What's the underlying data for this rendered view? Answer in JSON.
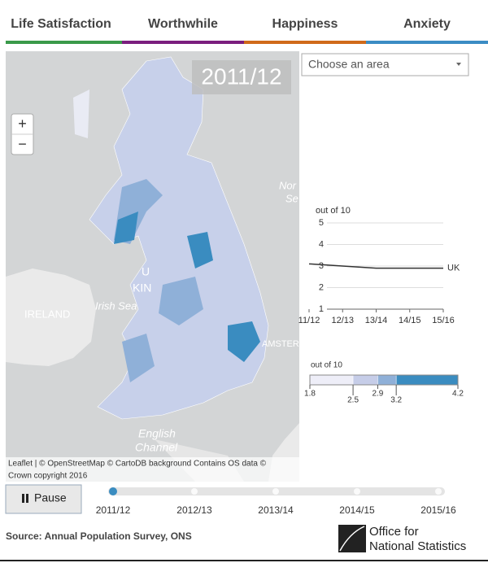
{
  "tabs": [
    {
      "label": "Life Satisfaction",
      "color": "#3a9a4a"
    },
    {
      "label": "Worthwhile",
      "color": "#7b1e7e"
    },
    {
      "label": "Happiness",
      "color": "#d06a1a"
    },
    {
      "label": "Anxiety",
      "color": "#3b8cc4"
    }
  ],
  "map": {
    "year": "2011/12",
    "zoom_in": "+",
    "zoom_out": "−",
    "labels": {
      "ireland": "IRELAND",
      "irish_sea": "Irish Sea",
      "english": "English",
      "channel": "Channel",
      "north": "Nor",
      "sea": "Se",
      "u": "U",
      "kin": "KIN",
      "amster": "AMSTER"
    },
    "attribution": [
      "Leaflet | © OpenStreetMap © CartoDB background Contains OS data ©",
      "Crown copyright 2016"
    ]
  },
  "dropdown": "Choose an area",
  "chart_data": {
    "type": "line",
    "y_label": "out of 10",
    "categories": [
      "11/12",
      "12/13",
      "13/14",
      "14/15",
      "15/16"
    ],
    "series": [
      {
        "name": "UK",
        "color": "#333333",
        "values": [
          3.1,
          3.0,
          2.9,
          2.9,
          2.9
        ]
      }
    ],
    "ylim": [
      1,
      5
    ],
    "yticks": [
      1,
      2,
      3,
      4,
      5
    ],
    "grid": true
  },
  "legend": {
    "label": "out of 10",
    "breaks": [
      1.8,
      2.5,
      2.9,
      3.2,
      4.2
    ],
    "colors": [
      "#eeeef8",
      "#c6cde8",
      "#8fb0d8",
      "#3a8cc0"
    ]
  },
  "timeline": {
    "button": "Pause",
    "years": [
      "2011/12",
      "2012/13",
      "2013/14",
      "2014/15",
      "2015/16"
    ],
    "current": 0
  },
  "footer": {
    "source": "Source: Annual Population Survey, ONS",
    "logo": [
      "Office for",
      "National Statistics"
    ]
  }
}
